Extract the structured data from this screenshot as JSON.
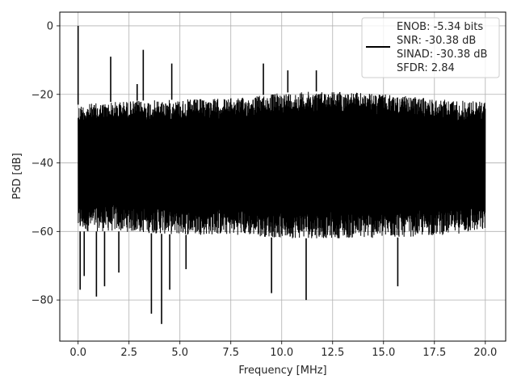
{
  "chart_data": {
    "type": "line",
    "title": "",
    "xlabel": "Frequency [MHz]",
    "ylabel": "PSD [dB]",
    "xlim": [
      -0.9,
      21.0
    ],
    "ylim": [
      -92,
      4
    ],
    "xticks": [
      0.0,
      2.5,
      5.0,
      7.5,
      10.0,
      12.5,
      15.0,
      17.5,
      20.0
    ],
    "xtick_labels": [
      "0.0",
      "2.5",
      "5.0",
      "7.5",
      "10.0",
      "12.5",
      "15.0",
      "17.5",
      "20.0"
    ],
    "yticks": [
      0,
      -20,
      -40,
      -60,
      -80
    ],
    "ytick_labels": [
      "0",
      "−20",
      "−40",
      "−60",
      "−80"
    ],
    "grid": true,
    "legend": {
      "position": "top-right",
      "entries": [
        "ENOB: -5.34 bits",
        "SNR: -30.38 dB",
        "SINAD: -30.38 dB",
        "SFDR: 2.84"
      ]
    },
    "series": [
      {
        "color": "#000000",
        "x_range": [
          0,
          20
        ],
        "noise_band": {
          "upper_envelope": {
            "x": [
              0,
              2,
              5,
              8,
              10,
              12.5,
              15,
              18,
              20
            ],
            "y": [
              -23,
              -22,
              -21.5,
              -21,
              -19.5,
              -19,
              -20,
              -21.5,
              -22
            ]
          },
          "lower_envelope": {
            "x": [
              0,
              2,
              5,
              8,
              10,
              12.5,
              15,
              18,
              20
            ],
            "y": [
              -60,
              -60,
              -61,
              -61,
              -62,
              -62,
              -62,
              -61,
              -60
            ]
          }
        },
        "peaks": [
          {
            "x": 0.0,
            "y": 0
          },
          {
            "x": 1.6,
            "y": -9
          },
          {
            "x": 3.2,
            "y": -7
          },
          {
            "x": 2.9,
            "y": -17
          },
          {
            "x": 4.6,
            "y": -11
          },
          {
            "x": 9.1,
            "y": -11
          },
          {
            "x": 10.3,
            "y": -13
          },
          {
            "x": 11.7,
            "y": -13
          }
        ],
        "dips": [
          {
            "x": 0.1,
            "y": -77
          },
          {
            "x": 0.3,
            "y": -73
          },
          {
            "x": 0.9,
            "y": -79
          },
          {
            "x": 1.3,
            "y": -76
          },
          {
            "x": 2.0,
            "y": -72
          },
          {
            "x": 3.6,
            "y": -84
          },
          {
            "x": 4.1,
            "y": -87
          },
          {
            "x": 4.5,
            "y": -77
          },
          {
            "x": 5.3,
            "y": -71
          },
          {
            "x": 9.5,
            "y": -78
          },
          {
            "x": 11.2,
            "y": -80
          },
          {
            "x": 15.7,
            "y": -76
          }
        ]
      }
    ]
  }
}
